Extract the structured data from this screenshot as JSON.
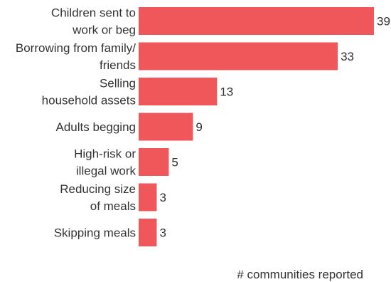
{
  "chart_data": {
    "type": "bar",
    "orientation": "horizontal",
    "categories": [
      [
        "Children sent to",
        "work or beg"
      ],
      [
        "Borrowing from family/",
        "friends"
      ],
      [
        "Selling",
        "household assets"
      ],
      [
        "Adults begging"
      ],
      [
        "High-risk or",
        "illegal work"
      ],
      [
        "Reducing size",
        "of meals"
      ],
      [
        "Skipping meals"
      ]
    ],
    "values": [
      39,
      33,
      13,
      9,
      5,
      3,
      3
    ],
    "xlabel": "# communities reported",
    "ylabel": "",
    "xlim": [
      0,
      39
    ],
    "grid": false,
    "colors": {
      "bar": "#ef575a",
      "text": "#333333"
    }
  }
}
